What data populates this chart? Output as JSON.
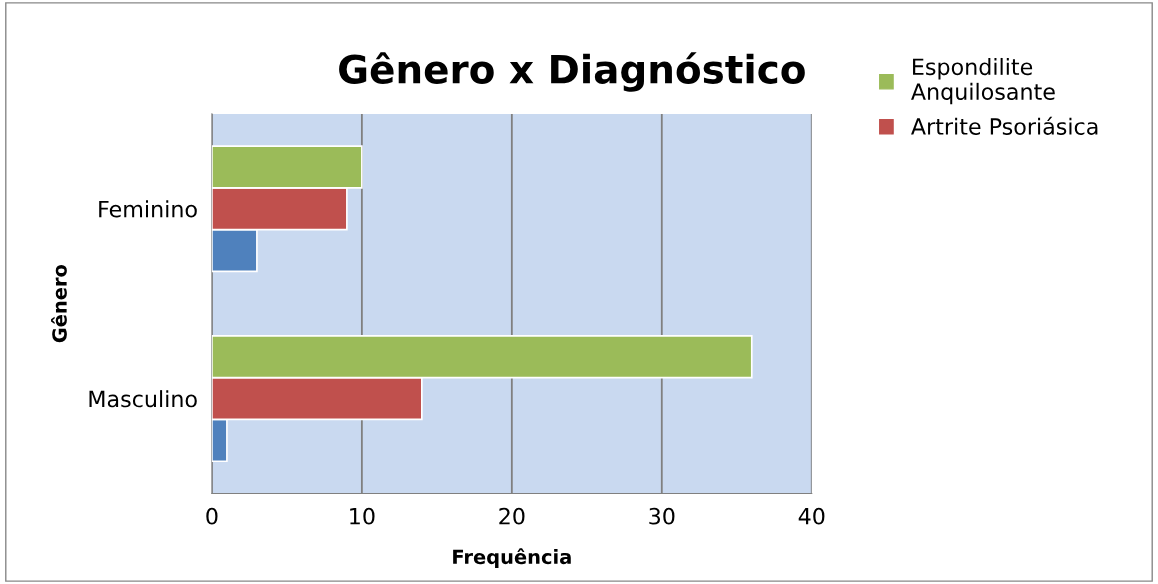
{
  "chart_data": {
    "type": "bar",
    "orientation": "horizontal",
    "title": "Gênero x Diagnóstico",
    "xlabel": "Frequência",
    "ylabel": "Gênero",
    "categories": [
      "Feminino",
      "Masculino"
    ],
    "series": [
      {
        "color": "#4f81bd",
        "values": [
          3,
          1
        ]
      },
      {
        "name": "Artrite Psoriásica",
        "color": "#c0504d",
        "values": [
          9,
          14
        ]
      },
      {
        "name": "Espondilite Anquilosante",
        "color": "#9bbb59",
        "values": [
          10,
          36
        ]
      }
    ],
    "xlim": [
      0,
      40
    ],
    "xticks": [
      0,
      10,
      20,
      30,
      40
    ],
    "grid": "x",
    "legend": "right"
  }
}
